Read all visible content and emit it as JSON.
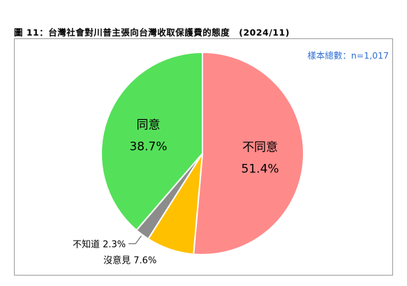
{
  "title": "圖 11：台灣社會對川普主張向台灣收取保護費的態度　(2024/11)",
  "sample_note": "樣本總數：n=1,017",
  "colors": {
    "note": "#2f6fd6",
    "border": "#9a9a9a"
  },
  "chart_data": {
    "type": "pie",
    "title": "圖 11：台灣社會對川普主張向台灣收取保護費的態度　(2024/11)",
    "start": "12 o'clock",
    "direction": "clockwise",
    "slices": [
      {
        "label": "不同意",
        "value": 51.4,
        "value_label": "51.4%",
        "color": "#ff8a8a",
        "label_position": "inside"
      },
      {
        "label": "沒意見",
        "value": 7.6,
        "value_label": "7.6%",
        "color": "#ffc000",
        "label_position": "outside"
      },
      {
        "label": "不知道",
        "value": 2.3,
        "value_label": "2.3%",
        "color": "#8c8c8c",
        "label_position": "outside"
      },
      {
        "label": "同意",
        "value": 38.7,
        "value_label": "38.7%",
        "color": "#55e05a",
        "label_position": "inside"
      }
    ]
  }
}
